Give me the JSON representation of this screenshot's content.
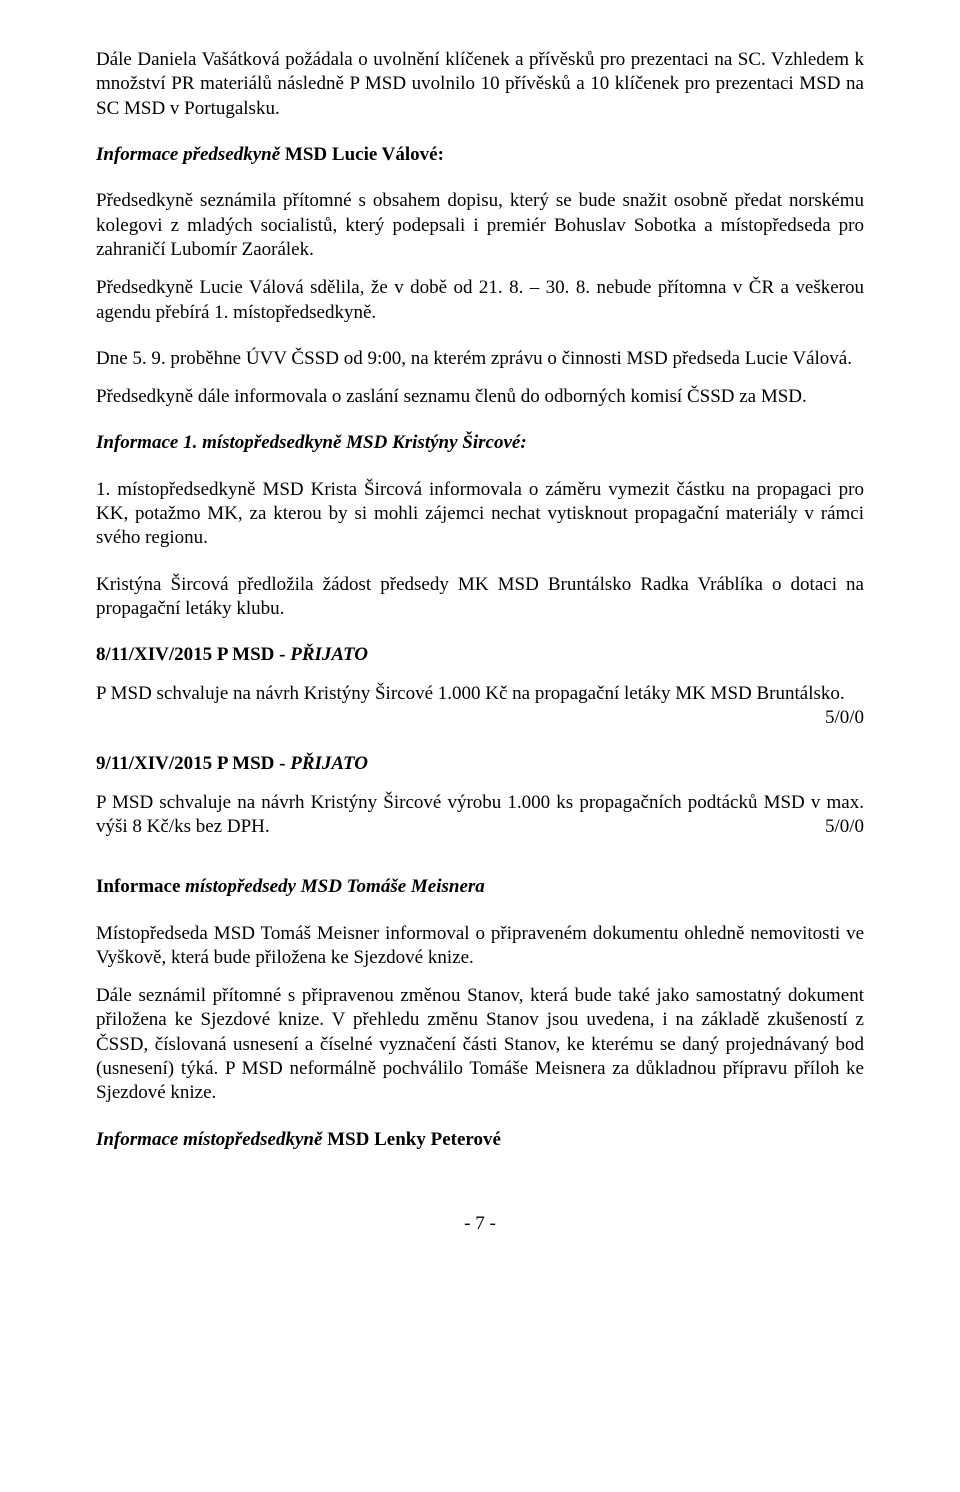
{
  "p1": "Dále Daniela Vašátková požádala o uvolnění klíčenek a přívěsků pro prezentaci na SC. Vzhledem k množství PR materiálů následně P MSD uvolnilo 10 přívěsků a 10 klíčenek pro prezentaci MSD na SC MSD v Portugalsku.",
  "h1_a": "Informace předsedkyně",
  "h1_b": " MSD Lucie Válové:",
  "p2": "Předsedkyně seznámila přítomné s obsahem dopisu, který se bude snažit osobně předat norskému kolegovi z mladých socialistů, který podepsali i premiér Bohuslav Sobotka a místopředseda pro zahraničí Lubomír Zaorálek.",
  "p3": "Předsedkyně Lucie Válová sdělila, že v době od 21. 8. – 30. 8. nebude přítomna v ČR a veškerou agendu přebírá 1. místopředsedkyně.",
  "p4": "Dne 5. 9. proběhne ÚVV ČSSD od 9:00, na kterém zprávu o činnosti MSD předseda Lucie Válová.",
  "p5": "Předsedkyně dále informovala o zaslání seznamu členů do odborných komisí ČSSD za MSD.",
  "h2": "Informace 1. místopředsedkyně MSD Kristýny Šircové:",
  "p6": "1. místopředsedkyně MSD Krista Šircová informovala o záměru vymezit částku na propagaci pro KK, potažmo MK, za kterou by si mohli zájemci nechat vytisknout propagační materiály v rámci svého regionu.",
  "p7": "Kristýna Šircová předložila žádost předsedy MK MSD Bruntálsko Radka Vráblíka o dotaci na propagační letáky klubu.",
  "r1_code": "8/11/XIV/2015 P MSD - ",
  "r1_status": "PŘIJATO",
  "r1_text_a": "P MSD schvaluje na návrh Kristýny Šircové 1.000 Kč na propagační letáky MK MSD Bruntálsko.",
  "r1_vote": "5/0/0",
  "r2_code": "9/11/XIV/2015 P MSD - ",
  "r2_status": "PŘIJATO",
  "r2_text_a": "P MSD schvaluje na návrh Kristýny Šircové výrobu 1.000 ks propagačních podtácků MSD v max. výši 8 Kč/ks bez DPH.",
  "r2_vote": "5/0/0",
  "h3_a": "Informace",
  "h3_b": " místopředsedy MSD Tomáše Meisnera",
  "p8": "Místopředseda MSD Tomáš Meisner informoval o připraveném dokumentu ohledně nemovitosti ve Vyškově, která bude přiložena ke Sjezdové knize.",
  "p9": "Dále seznámil přítomné s připravenou změnou Stanov, která bude také jako samostatný dokument přiložena ke Sjezdové knize. V přehledu změnu Stanov jsou uvedena, i na základě zkušeností z ČSSD, číslovaná usnesení a číselné vyznačení části Stanov, ke kterému se daný projednávaný bod (usnesení) týká. P MSD neformálně pochválilo Tomáše Meisnera za důkladnou přípravu příloh ke Sjezdové knize.",
  "h4_a": "Informace místopředsedkyně",
  "h4_b": " MSD Lenky Peterové",
  "footer": "- 7 -"
}
